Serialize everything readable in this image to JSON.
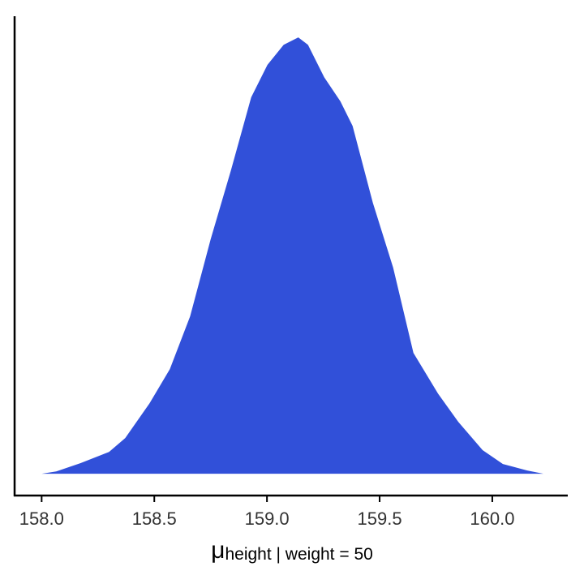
{
  "chart_data": {
    "type": "area",
    "x_label": {
      "symbol": "μ",
      "subscript": "height | weight = 50"
    },
    "x": [
      158.0,
      158.065,
      158.173,
      158.299,
      158.371,
      158.479,
      158.569,
      158.659,
      158.75,
      158.84,
      158.93,
      159.002,
      159.074,
      159.139,
      159.182,
      159.254,
      159.326,
      159.38,
      159.47,
      159.56,
      159.65,
      159.759,
      159.849,
      159.957,
      160.047,
      160.155,
      160.227
    ],
    "values": [
      0,
      0.008,
      0.036,
      0.074,
      0.121,
      0.239,
      0.355,
      0.534,
      0.795,
      1.029,
      1.277,
      1.387,
      1.455,
      1.48,
      1.455,
      1.345,
      1.263,
      1.18,
      0.919,
      0.699,
      0.41,
      0.272,
      0.176,
      0.08,
      0.033,
      0.011,
      0
    ],
    "color": "#3150d9",
    "xlim": [
      157.88,
      160.335
    ],
    "ylim": [
      -0.074,
      1.552
    ],
    "xticks": [
      {
        "value": 158,
        "label": "158.0"
      },
      158.5,
      {
        "value": 159,
        "label": "159.0"
      },
      159.5,
      {
        "value": 160,
        "label": "160.0"
      }
    ]
  }
}
